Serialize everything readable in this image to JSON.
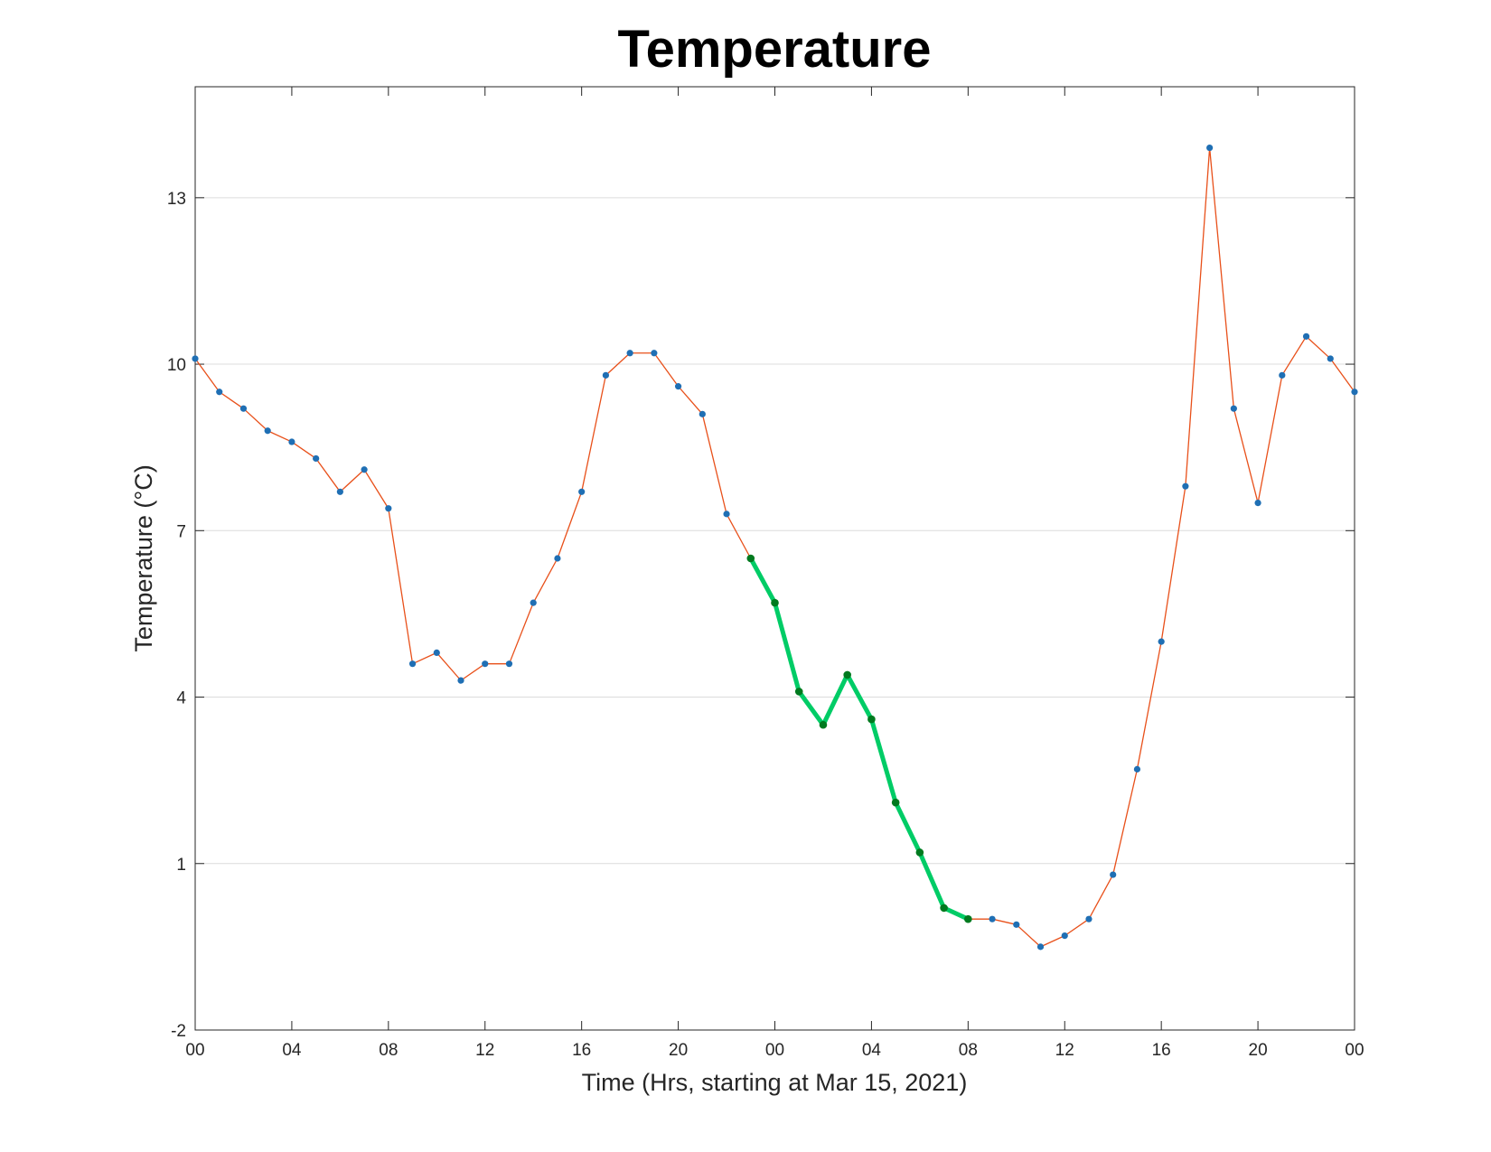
{
  "chart_data": {
    "type": "line",
    "title": "Temperature",
    "xlabel": "Time (Hrs, starting at Mar 15, 2021)",
    "ylabel": "Temperature (°C)",
    "ylim": [
      -2,
      15
    ],
    "xlim": [
      0,
      48
    ],
    "yticks": [
      -2,
      1,
      4,
      7,
      10,
      13
    ],
    "xticks": [
      0,
      4,
      8,
      12,
      16,
      20,
      24,
      28,
      32,
      36,
      40,
      44,
      48
    ],
    "xtick_labels": [
      "00",
      "04",
      "08",
      "12",
      "16",
      "20",
      "00",
      "04",
      "08",
      "12",
      "16",
      "20",
      "00"
    ],
    "grid": "horizontal",
    "series": [
      {
        "color": "#e8501a",
        "marker_color": "#1f6fb4",
        "x": [
          0,
          1,
          2,
          3,
          4,
          5,
          6,
          7,
          8,
          9,
          10,
          11,
          12,
          13,
          14,
          15,
          16,
          17,
          18,
          19,
          20,
          21,
          22,
          23,
          24,
          25,
          26,
          27,
          28,
          29,
          30,
          31,
          32,
          33,
          34,
          35,
          36,
          37,
          38,
          39,
          40,
          41,
          42,
          43,
          44,
          45,
          46,
          47,
          48
        ],
        "y": [
          10.1,
          9.5,
          9.2,
          8.8,
          8.6,
          8.3,
          7.7,
          8.1,
          7.4,
          4.6,
          4.8,
          4.3,
          4.6,
          4.6,
          5.7,
          6.5,
          7.7,
          9.8,
          10.2,
          10.2,
          9.6,
          9.1,
          7.3,
          6.5,
          5.7,
          4.1,
          3.5,
          4.4,
          3.6,
          2.1,
          1.2,
          0.2,
          0.0,
          0.0,
          -0.1,
          -0.5,
          -0.3,
          0.0,
          0.8,
          2.7,
          5.0,
          7.8,
          13.9,
          9.2,
          7.5,
          9.8,
          10.5,
          10.1,
          9.5
        ]
      },
      {
        "color": "#00cc66",
        "marker_color": "#007a1f",
        "x": [
          23,
          24,
          25,
          26,
          27,
          28,
          29,
          30,
          31,
          32
        ],
        "y": [
          6.5,
          5.7,
          4.1,
          3.5,
          4.4,
          3.6,
          2.1,
          1.2,
          0.2,
          0.0
        ]
      }
    ]
  }
}
